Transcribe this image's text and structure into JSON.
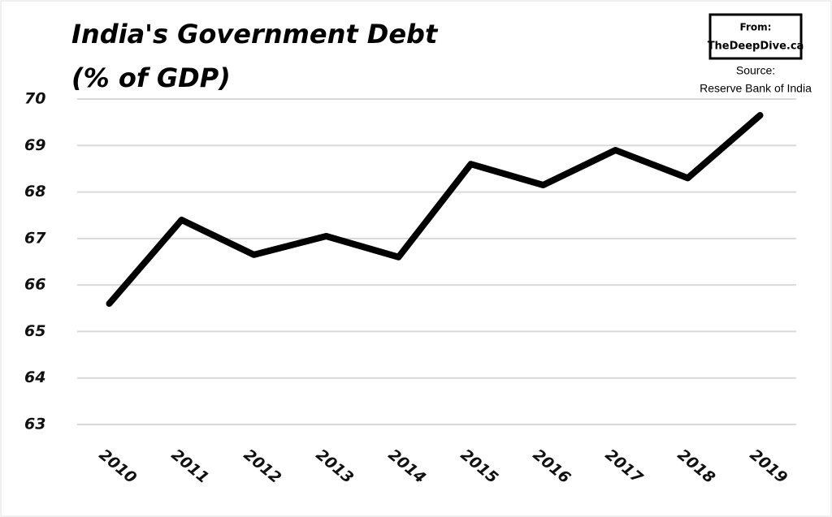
{
  "chart_data": {
    "type": "line",
    "title": "India's Government Debt",
    "subtitle": "(% of GDP)",
    "badge": [
      "From:",
      "TheDeepDive.ca"
    ],
    "source": [
      "Source:",
      "Reserve Bank of India"
    ],
    "categories": [
      "2010",
      "2011",
      "2012",
      "2013",
      "2014",
      "2015",
      "2016",
      "2017",
      "2018",
      "2019"
    ],
    "values": [
      65.6,
      67.4,
      66.65,
      67.05,
      66.6,
      68.6,
      68.15,
      68.9,
      68.3,
      69.65
    ],
    "color": "#000000",
    "ylim": [
      63,
      70
    ],
    "yticks": [
      63,
      64,
      65,
      66,
      67,
      68,
      69,
      70
    ],
    "grid": true
  }
}
